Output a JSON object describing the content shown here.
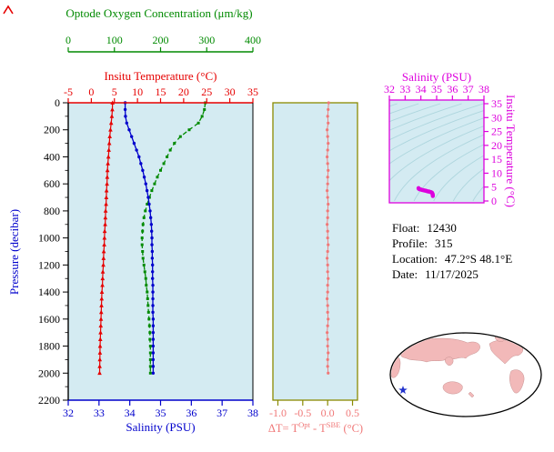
{
  "colors": {
    "plot_bg": "#d4ebf2",
    "temperature": "#e60000",
    "salinity": "#0000cc",
    "oxygen": "#008a00",
    "pressure_label": "#0000cc",
    "pressure_ticks": "#000000",
    "delta": "#f07878",
    "delta_frame": "#8a8a00",
    "magenta": "#dd00dd",
    "contour": "#aed6de",
    "land": "#f2b9b9",
    "star": "#2233cc"
  },
  "profile_panel": {
    "oxygen_axis": {
      "title": "Optode Oxygen Concentration (μm/kg)",
      "min": 0,
      "max": 400,
      "ticks": [
        0,
        100,
        200,
        300,
        400
      ]
    },
    "temperature_axis": {
      "title": "Insitu Temperature (°C)",
      "min": -5,
      "max": 35,
      "ticks": [
        -5,
        0,
        5,
        10,
        15,
        20,
        25,
        30,
        35
      ]
    },
    "pressure_axis": {
      "title": "Pressure (decibar)",
      "min": 0,
      "max": 2200,
      "ticks": [
        0,
        200,
        400,
        600,
        800,
        1000,
        1200,
        1400,
        1600,
        1800,
        2000,
        2200
      ]
    },
    "salinity_axis": {
      "title": "Salinity (PSU)",
      "min": 32,
      "max": 38,
      "ticks": [
        32,
        33,
        34,
        35,
        36,
        37,
        38
      ]
    }
  },
  "delta_panel": {
    "axis": {
      "ticks": [
        -1.0,
        -0.5,
        0.0,
        0.5
      ],
      "tick_labels": [
        "-1.0",
        "-0.5",
        "0.0",
        "0.5"
      ]
    },
    "title_parts": {
      "pre": "ΔT= T",
      "sup1": "Opt",
      "mid": " - T",
      "sup2": "SBE",
      "post": " (°C)"
    }
  },
  "ts_panel": {
    "salinity_axis": {
      "title": "Salinity (PSU)",
      "min": 32,
      "max": 38,
      "ticks": [
        32,
        33,
        34,
        35,
        36,
        37,
        38
      ]
    },
    "temperature_axis": {
      "title": "Insitu Temperature (°C)",
      "min": 0,
      "max": 35,
      "ticks": [
        0,
        5,
        10,
        15,
        20,
        25,
        30,
        35
      ]
    }
  },
  "info": {
    "float_label": "Float:",
    "float_value": "12430",
    "profile_label": "Profile:",
    "profile_value": "315",
    "location_label": "Location:",
    "location_value": "47.2°S  48.1°E",
    "date_label": "Date:",
    "date_value": "11/17/2025"
  },
  "chart_data": [
    {
      "id": "profile",
      "type": "line",
      "ylabel": "Pressure (decibar)",
      "ylim": [
        0,
        2200
      ],
      "y_inverted": true,
      "pressure_db": [
        0,
        50,
        100,
        150,
        200,
        250,
        300,
        350,
        400,
        450,
        500,
        550,
        600,
        650,
        700,
        750,
        800,
        850,
        900,
        950,
        1000,
        1050,
        1100,
        1150,
        1200,
        1250,
        1300,
        1350,
        1400,
        1450,
        1500,
        1550,
        1600,
        1650,
        1700,
        1750,
        1800,
        1850,
        1900,
        1950,
        2000
      ],
      "series": [
        {
          "name": "Insitu Temperature (°C)",
          "color": "#e60000",
          "x_range": [
            -5,
            35
          ],
          "marker": "triangle",
          "values": [
            4.6,
            4.55,
            4.45,
            4.3,
            4.15,
            4.0,
            3.9,
            3.8,
            3.7,
            3.6,
            3.5,
            3.45,
            3.4,
            3.3,
            3.25,
            3.2,
            3.1,
            3.05,
            3.0,
            2.9,
            2.85,
            2.8,
            2.7,
            2.65,
            2.6,
            2.5,
            2.45,
            2.4,
            2.3,
            2.25,
            2.2,
            2.15,
            2.1,
            2.05,
            2.0,
            1.95,
            1.9,
            1.88,
            1.85,
            1.82,
            1.8
          ]
        },
        {
          "name": "Salinity (PSU)",
          "color": "#0000cc",
          "x_range": [
            32,
            38
          ],
          "marker": "circle",
          "values": [
            33.85,
            33.85,
            33.86,
            33.9,
            33.98,
            34.06,
            34.14,
            34.22,
            34.3,
            34.36,
            34.42,
            34.47,
            34.52,
            34.56,
            34.6,
            34.63,
            34.66,
            34.68,
            34.7,
            34.71,
            34.72,
            34.72,
            34.73,
            34.73,
            34.74,
            34.74,
            34.74,
            34.75,
            34.75,
            34.75,
            34.75,
            34.75,
            34.76,
            34.76,
            34.76,
            34.76,
            34.76,
            34.76,
            34.76,
            34.76,
            34.76
          ]
        },
        {
          "name": "Optode Oxygen Concentration (μm/kg)",
          "color": "#008a00",
          "x_range": [
            0,
            400
          ],
          "marker": "square",
          "dashed": true,
          "values": [
            297,
            295,
            290,
            282,
            262,
            243,
            230,
            221,
            214,
            207,
            200,
            193,
            187,
            181,
            176,
            171,
            167,
            164,
            162,
            161,
            160,
            160,
            161,
            162,
            164,
            166,
            168,
            169,
            171,
            172,
            173,
            174,
            175,
            176,
            177,
            177,
            178,
            178,
            178,
            178,
            178
          ]
        }
      ]
    },
    {
      "id": "delta_t",
      "type": "scatter",
      "xlabel": "ΔT = T^Opt - T^SBE (°C)",
      "xlim": [
        -1.1,
        0.6
      ],
      "xticks": [
        -1.0,
        -0.5,
        0.0,
        0.5
      ],
      "values": [
        0.02,
        0.01,
        0.0,
        0.01,
        -0.01,
        0.0,
        0.01,
        0.0,
        -0.01,
        0.0,
        0.01,
        0.0,
        0.0,
        -0.01,
        0.0,
        0.01,
        0.0,
        0.0,
        -0.01,
        0.0,
        0.0,
        0.01,
        0.0,
        -0.01,
        0.0,
        0.0,
        0.01,
        0.0,
        0.0,
        -0.01,
        0.0,
        0.0,
        0.01,
        0.0,
        -0.01,
        0.0,
        0.0,
        0.01,
        0.0,
        0.0,
        0.01
      ]
    },
    {
      "id": "ts_diagram",
      "type": "line",
      "xlabel": "Salinity (PSU)",
      "ylabel": "Insitu Temperature (°C)",
      "xlim": [
        32,
        38
      ],
      "ylim": [
        0,
        35
      ],
      "isopycnal_levels": [
        18,
        19,
        20,
        21,
        22,
        23,
        24,
        25,
        26,
        27,
        28,
        29,
        30
      ],
      "salinity": [
        33.85,
        33.85,
        33.86,
        33.9,
        33.98,
        34.06,
        34.14,
        34.22,
        34.3,
        34.36,
        34.42,
        34.47,
        34.52,
        34.56,
        34.6,
        34.63,
        34.66,
        34.68,
        34.7,
        34.71,
        34.72,
        34.72,
        34.73,
        34.73,
        34.74,
        34.74,
        34.74,
        34.75,
        34.75,
        34.75,
        34.75,
        34.75,
        34.76,
        34.76,
        34.76,
        34.76,
        34.76,
        34.76,
        34.76,
        34.76,
        34.76
      ],
      "temperature": [
        4.6,
        4.55,
        4.45,
        4.3,
        4.15,
        4.0,
        3.9,
        3.8,
        3.7,
        3.6,
        3.5,
        3.45,
        3.4,
        3.3,
        3.25,
        3.2,
        3.1,
        3.05,
        3.0,
        2.9,
        2.85,
        2.8,
        2.7,
        2.65,
        2.6,
        2.5,
        2.45,
        2.4,
        2.3,
        2.25,
        2.2,
        2.15,
        2.1,
        2.05,
        2.0,
        1.95,
        1.9,
        1.88,
        1.85,
        1.82,
        1.8
      ]
    }
  ]
}
